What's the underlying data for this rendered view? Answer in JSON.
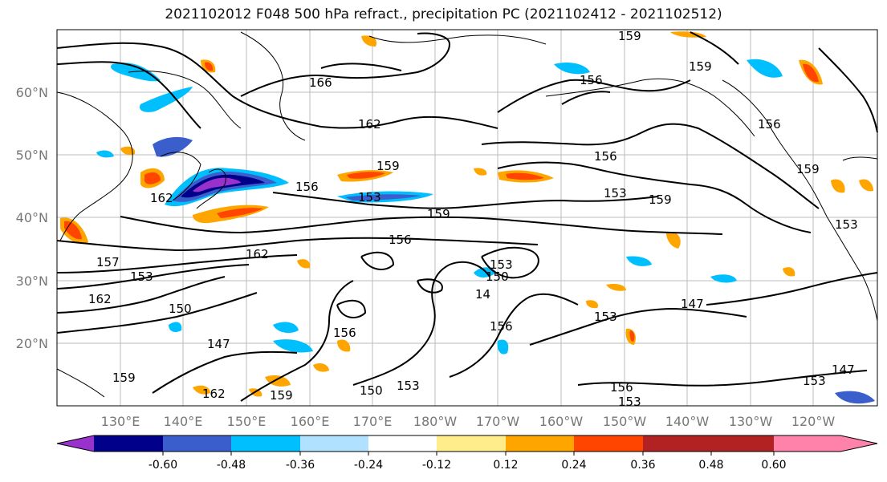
{
  "title": "2021102012 F048 500 hPa refract., precipitation PC (2021102412 - 2021102512)",
  "lat_labels": [
    "60°N",
    "50°N",
    "40°N",
    "30°N",
    "20°N"
  ],
  "lon_labels": [
    "130°E",
    "140°E",
    "150°E",
    "160°E",
    "170°E",
    "180°W",
    "170°W",
    "160°W",
    "150°W",
    "140°W",
    "130°W",
    "120°W"
  ],
  "contour_labels": [
    "159",
    "159",
    "166",
    "156",
    "162",
    "156",
    "159",
    "156",
    "153",
    "159",
    "159",
    "162",
    "156",
    "153",
    "159",
    "156",
    "153",
    "162",
    "157",
    "153",
    "162",
    "150",
    "147",
    "153",
    "156",
    "147",
    "153",
    "156",
    "159",
    "162",
    "159",
    "150",
    "153",
    "156",
    "153",
    "147",
    "153",
    "14",
    "150"
  ],
  "colorbar": {
    "colors": [
      "#9932cc",
      "#00008b",
      "#3a5fcd",
      "#00bfff",
      "#b0e2ff",
      "#ffffff",
      "#ffec8b",
      "#ffa500",
      "#ff4500",
      "#b22222",
      "#ff82ab"
    ],
    "tick_labels": [
      "-0.60",
      "-0.48",
      "-0.36",
      "-0.24",
      "-0.12",
      "0.12",
      "0.24",
      "0.36",
      "0.48",
      "0.60"
    ]
  },
  "legend_colors": {
    "orange": "#ffa500",
    "red": "#ff4500",
    "blue": "#00bfff",
    "navy": "#00008b",
    "purple": "#9932cc"
  }
}
